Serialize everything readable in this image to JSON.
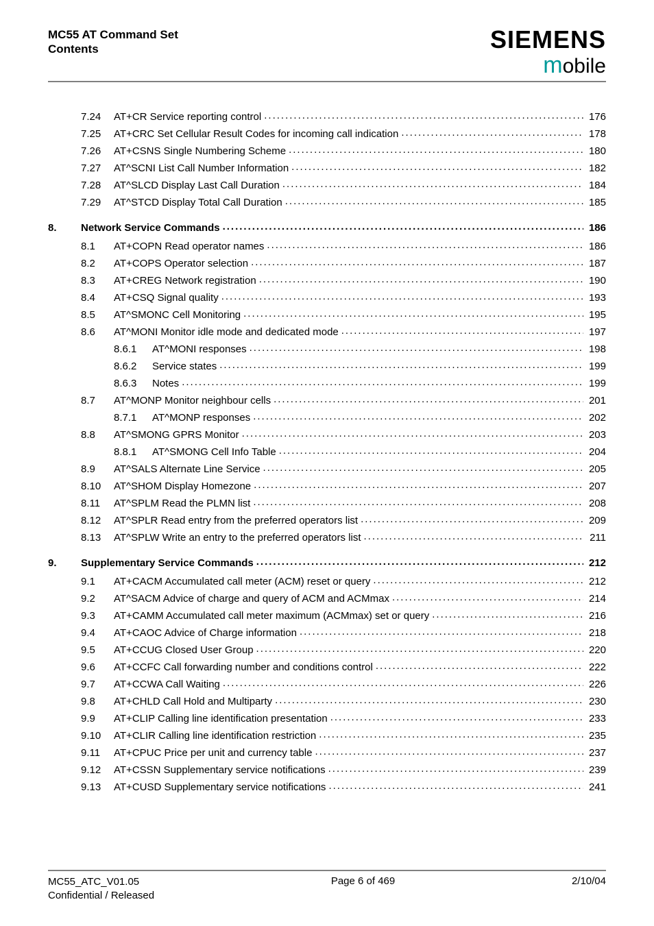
{
  "header": {
    "title_line1": "MC55 AT Command Set",
    "title_line2": "Contents",
    "brand": "SIEMENS",
    "subbrand_m": "m",
    "subbrand_rest": "obile"
  },
  "colors": {
    "rule": "#808080",
    "accent": "#009999",
    "text": "#000000",
    "background": "#ffffff"
  },
  "toc": [
    {
      "level": 1,
      "num": "7.24",
      "title": "AT+CR   Service reporting control",
      "page": "176"
    },
    {
      "level": 1,
      "num": "7.25",
      "title": "AT+CRC   Set Cellular Result Codes for incoming call indication",
      "page": "178"
    },
    {
      "level": 1,
      "num": "7.26",
      "title": "AT+CSNS   Single Numbering Scheme",
      "page": "180"
    },
    {
      "level": 1,
      "num": "7.27",
      "title": "AT^SCNI   List Call Number Information",
      "page": "182"
    },
    {
      "level": 1,
      "num": "7.28",
      "title": "AT^SLCD   Display Last Call Duration",
      "page": "184"
    },
    {
      "level": 1,
      "num": "7.29",
      "title": "AT^STCD   Display Total Call Duration",
      "page": "185"
    },
    {
      "level": 0,
      "num": "8.",
      "title": "Network Service Commands",
      "page": "186"
    },
    {
      "level": 1,
      "num": "8.1",
      "title": "AT+COPN   Read operator names",
      "page": "186"
    },
    {
      "level": 1,
      "num": "8.2",
      "title": "AT+COPS   Operator selection",
      "page": "187"
    },
    {
      "level": 1,
      "num": "8.3",
      "title": "AT+CREG   Network registration",
      "page": "190"
    },
    {
      "level": 1,
      "num": "8.4",
      "title": "AT+CSQ   Signal quality",
      "page": "193"
    },
    {
      "level": 1,
      "num": "8.5",
      "title": "AT^SMONC   Cell Monitoring",
      "page": "195"
    },
    {
      "level": 1,
      "num": "8.6",
      "title": "AT^MONI   Monitor idle mode and dedicated mode",
      "page": "197"
    },
    {
      "level": 2,
      "num": "8.6.1",
      "title": "AT^MONI responses",
      "page": "198"
    },
    {
      "level": 2,
      "num": "8.6.2",
      "title": "Service states",
      "page": "199"
    },
    {
      "level": 2,
      "num": "8.6.3",
      "title": "Notes",
      "page": "199"
    },
    {
      "level": 1,
      "num": "8.7",
      "title": "AT^MONP   Monitor neighbour cells",
      "page": "201"
    },
    {
      "level": 2,
      "num": "8.7.1",
      "title": "AT^MONP responses",
      "page": "202"
    },
    {
      "level": 1,
      "num": "8.8",
      "title": "AT^SMONG   GPRS Monitor",
      "page": "203"
    },
    {
      "level": 2,
      "num": "8.8.1",
      "title": "AT^SMONG Cell Info Table",
      "page": "204"
    },
    {
      "level": 1,
      "num": "8.9",
      "title": "AT^SALS   Alternate Line Service",
      "page": "205"
    },
    {
      "level": 1,
      "num": "8.10",
      "title": "AT^SHOM   Display Homezone",
      "page": "207"
    },
    {
      "level": 1,
      "num": "8.11",
      "title": "AT^SPLM   Read the PLMN list",
      "page": "208"
    },
    {
      "level": 1,
      "num": "8.12",
      "title": "AT^SPLR   Read entry from the preferred operators list",
      "page": "209"
    },
    {
      "level": 1,
      "num": "8.13",
      "title": "AT^SPLW   Write an entry to the preferred operators list",
      "page": "211"
    },
    {
      "level": 0,
      "num": "9.",
      "title": "Supplementary Service Commands",
      "page": "212"
    },
    {
      "level": 1,
      "num": "9.1",
      "title": "AT+CACM   Accumulated call meter (ACM) reset or query",
      "page": "212"
    },
    {
      "level": 1,
      "num": "9.2",
      "title": "AT^SACM   Advice of charge and query of ACM and ACMmax",
      "page": "214"
    },
    {
      "level": 1,
      "num": "9.3",
      "title": "AT+CAMM   Accumulated call meter maximum (ACMmax) set or query",
      "page": "216"
    },
    {
      "level": 1,
      "num": "9.4",
      "title": "AT+CAOC   Advice of Charge information",
      "page": "218"
    },
    {
      "level": 1,
      "num": "9.5",
      "title": "AT+CCUG   Closed User Group",
      "page": "220"
    },
    {
      "level": 1,
      "num": "9.6",
      "title": "AT+CCFC   Call forwarding number and conditions control",
      "page": "222"
    },
    {
      "level": 1,
      "num": "9.7",
      "title": "AT+CCWA   Call Waiting",
      "page": "226"
    },
    {
      "level": 1,
      "num": "9.8",
      "title": "AT+CHLD   Call Hold and Multiparty",
      "page": "230"
    },
    {
      "level": 1,
      "num": "9.9",
      "title": "AT+CLIP   Calling line identification presentation",
      "page": "233"
    },
    {
      "level": 1,
      "num": "9.10",
      "title": "AT+CLIR   Calling line identification restriction",
      "page": "235"
    },
    {
      "level": 1,
      "num": "9.11",
      "title": "AT+CPUC   Price per unit and currency table",
      "page": "237"
    },
    {
      "level": 1,
      "num": "9.12",
      "title": "AT+CSSN   Supplementary service notifications",
      "page": "239"
    },
    {
      "level": 1,
      "num": "9.13",
      "title": "AT+CUSD   Supplementary service notifications",
      "page": "241"
    }
  ],
  "footer": {
    "left_line1": "MC55_ATC_V01.05",
    "left_line2": "Confidential / Released",
    "center": "Page 6 of 469",
    "right": "2/10/04"
  }
}
